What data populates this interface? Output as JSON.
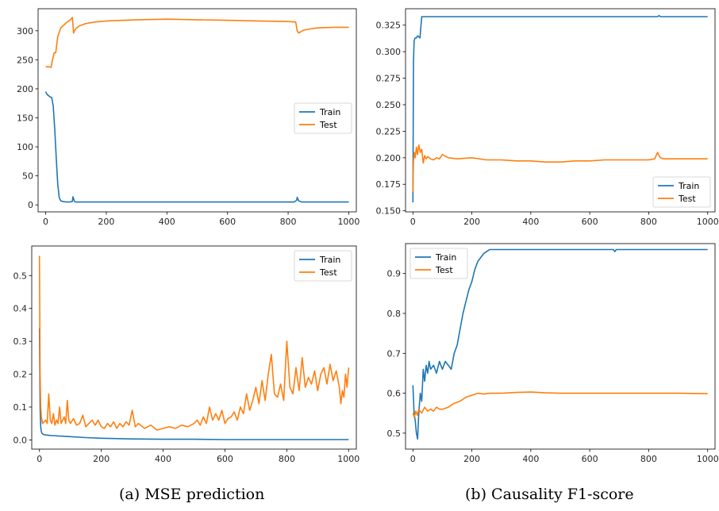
{
  "colors": {
    "train": "#1f77b4",
    "test": "#ff7f0e"
  },
  "captions": {
    "a": "(a) MSE prediction",
    "b": "(b) Causality F1-score"
  },
  "chart_data": [
    {
      "type": "line",
      "xlim": [
        -25,
        1025
      ],
      "ylim": [
        -12,
        338
      ],
      "xticks": [
        0,
        200,
        400,
        600,
        800,
        1000
      ],
      "yticks": [
        0,
        50,
        100,
        150,
        200,
        250,
        300
      ],
      "ytick_labels": [
        "0",
        "50",
        "100",
        "150",
        "200",
        "250",
        "300"
      ],
      "legend": "center-right",
      "series": [
        {
          "name": "Train",
          "color": "#1f77b4",
          "x": [
            0,
            5,
            10,
            15,
            20,
            25,
            30,
            35,
            40,
            45,
            50,
            55,
            60,
            70,
            80,
            88,
            90,
            92,
            95,
            100,
            150,
            200,
            300,
            400,
            500,
            600,
            700,
            800,
            820,
            828,
            830,
            835,
            845,
            900,
            1000
          ],
          "y": [
            195,
            190,
            188,
            186,
            185,
            170,
            130,
            80,
            35,
            12,
            7,
            6,
            5.5,
            5,
            5,
            6,
            14,
            11,
            6,
            5,
            5,
            5,
            5,
            5,
            5,
            5,
            5,
            5,
            5,
            8,
            13,
            7,
            5,
            5,
            5
          ]
        },
        {
          "name": "Test",
          "color": "#ff7f0e",
          "x": [
            0,
            10,
            18,
            22,
            28,
            33,
            40,
            50,
            60,
            70,
            80,
            88,
            92,
            95,
            100,
            110,
            130,
            160,
            200,
            300,
            400,
            500,
            600,
            700,
            800,
            825,
            830,
            835,
            850,
            880,
            900,
            950,
            1000
          ],
          "y": [
            238,
            238,
            237,
            248,
            262,
            262,
            290,
            305,
            310,
            315,
            318,
            323,
            296,
            300,
            304,
            308,
            312,
            315,
            317,
            319,
            320,
            319,
            318,
            317,
            316,
            315,
            300,
            296,
            301,
            304,
            305,
            306,
            306
          ]
        }
      ]
    },
    {
      "type": "line",
      "xlim": [
        -25,
        1025
      ],
      "ylim": [
        0.149,
        0.3405
      ],
      "xticks": [
        0,
        200,
        400,
        600,
        800,
        1000
      ],
      "yticks": [
        0.15,
        0.175,
        0.2,
        0.225,
        0.25,
        0.275,
        0.3,
        0.325
      ],
      "ytick_labels": [
        "0.150",
        "0.175",
        "0.200",
        "0.225",
        "0.250",
        "0.275",
        "0.300",
        "0.325"
      ],
      "legend": "bottom-right",
      "series": [
        {
          "name": "Train",
          "color": "#1f77b4",
          "x": [
            0,
            2,
            4,
            6,
            8,
            12,
            16,
            20,
            24,
            30,
            40,
            60,
            100,
            200,
            400,
            600,
            800,
            830,
            835,
            840,
            900,
            1000
          ],
          "y": [
            0.158,
            0.29,
            0.31,
            0.312,
            0.313,
            0.313,
            0.315,
            0.314,
            0.313,
            0.333,
            0.333,
            0.333,
            0.333,
            0.333,
            0.333,
            0.333,
            0.333,
            0.333,
            0.334,
            0.333,
            0.333,
            0.333
          ]
        },
        {
          "name": "Test",
          "color": "#ff7f0e",
          "x": [
            0,
            2,
            5,
            8,
            12,
            16,
            20,
            25,
            30,
            35,
            40,
            45,
            50,
            60,
            70,
            80,
            90,
            100,
            120,
            150,
            200,
            250,
            300,
            350,
            400,
            450,
            500,
            550,
            600,
            650,
            700,
            750,
            800,
            820,
            830,
            835,
            840,
            850,
            900,
            950,
            1000
          ],
          "y": [
            0.168,
            0.197,
            0.205,
            0.2,
            0.21,
            0.203,
            0.212,
            0.205,
            0.208,
            0.195,
            0.202,
            0.199,
            0.201,
            0.199,
            0.198,
            0.2,
            0.199,
            0.203,
            0.2,
            0.199,
            0.2,
            0.198,
            0.198,
            0.197,
            0.197,
            0.196,
            0.196,
            0.197,
            0.197,
            0.198,
            0.198,
            0.198,
            0.198,
            0.199,
            0.205,
            0.202,
            0.2,
            0.199,
            0.199,
            0.199,
            0.199
          ]
        }
      ]
    },
    {
      "type": "line",
      "xlim": [
        -25,
        1025
      ],
      "ylim": [
        -0.028,
        0.59
      ],
      "xticks": [
        0,
        200,
        400,
        600,
        800,
        1000
      ],
      "yticks": [
        0,
        0.1,
        0.2,
        0.3,
        0.4,
        0.5
      ],
      "ytick_labels": [
        "0.0",
        "0.1",
        "0.2",
        "0.3",
        "0.4",
        "0.5"
      ],
      "legend": "top-right",
      "series": [
        {
          "name": "Train",
          "color": "#1f77b4",
          "x": [
            0,
            2,
            4,
            6,
            8,
            10,
            15,
            20,
            30,
            40,
            50,
            60,
            80,
            100,
            150,
            200,
            300,
            400,
            500,
            600,
            700,
            800,
            900,
            1000
          ],
          "y": [
            0.34,
            0.1,
            0.04,
            0.025,
            0.02,
            0.018,
            0.016,
            0.015,
            0.014,
            0.013,
            0.013,
            0.012,
            0.011,
            0.01,
            0.007,
            0.005,
            0.003,
            0.002,
            0.002,
            0.001,
            0.001,
            0.001,
            0.001,
            0.001
          ]
        },
        {
          "name": "Test",
          "color": "#ff7f0e",
          "x": [
            0,
            2,
            4,
            6,
            10,
            15,
            20,
            25,
            30,
            35,
            40,
            45,
            50,
            55,
            60,
            65,
            70,
            75,
            80,
            85,
            90,
            95,
            100,
            110,
            120,
            130,
            140,
            150,
            160,
            170,
            180,
            190,
            200,
            210,
            220,
            230,
            240,
            250,
            260,
            270,
            280,
            290,
            300,
            310,
            320,
            340,
            360,
            380,
            400,
            420,
            440,
            460,
            480,
            500,
            510,
            520,
            530,
            540,
            550,
            560,
            570,
            580,
            590,
            600,
            610,
            620,
            630,
            640,
            650,
            660,
            670,
            680,
            690,
            700,
            710,
            720,
            730,
            740,
            750,
            760,
            770,
            780,
            790,
            800,
            810,
            820,
            830,
            840,
            850,
            860,
            870,
            880,
            890,
            900,
            910,
            920,
            930,
            940,
            950,
            960,
            970,
            975,
            980,
            985,
            990,
            995,
            1000
          ],
          "y": [
            0.56,
            0.2,
            0.1,
            0.07,
            0.05,
            0.055,
            0.06,
            0.05,
            0.14,
            0.06,
            0.05,
            0.08,
            0.045,
            0.06,
            0.05,
            0.1,
            0.05,
            0.06,
            0.07,
            0.05,
            0.12,
            0.06,
            0.05,
            0.065,
            0.045,
            0.05,
            0.075,
            0.04,
            0.05,
            0.06,
            0.045,
            0.06,
            0.04,
            0.035,
            0.05,
            0.04,
            0.055,
            0.035,
            0.05,
            0.04,
            0.055,
            0.045,
            0.09,
            0.04,
            0.05,
            0.035,
            0.045,
            0.03,
            0.035,
            0.04,
            0.035,
            0.045,
            0.04,
            0.05,
            0.06,
            0.045,
            0.07,
            0.05,
            0.1,
            0.06,
            0.08,
            0.06,
            0.09,
            0.05,
            0.065,
            0.07,
            0.085,
            0.06,
            0.1,
            0.08,
            0.14,
            0.09,
            0.12,
            0.16,
            0.11,
            0.18,
            0.12,
            0.2,
            0.26,
            0.14,
            0.13,
            0.17,
            0.12,
            0.3,
            0.16,
            0.14,
            0.22,
            0.15,
            0.25,
            0.16,
            0.19,
            0.17,
            0.21,
            0.15,
            0.2,
            0.22,
            0.17,
            0.23,
            0.18,
            0.21,
            0.16,
            0.11,
            0.15,
            0.13,
            0.2,
            0.16,
            0.22
          ]
        }
      ]
    },
    {
      "type": "line",
      "xlim": [
        -25,
        1025
      ],
      "ylim": [
        0.46,
        0.975
      ],
      "xticks": [
        0,
        200,
        400,
        600,
        800,
        1000
      ],
      "yticks": [
        0.5,
        0.6,
        0.7,
        0.8,
        0.9
      ],
      "ytick_labels": [
        "0.5",
        "0.6",
        "0.7",
        "0.8",
        "0.9"
      ],
      "legend": "top-left",
      "series": [
        {
          "name": "Train",
          "color": "#1f77b4",
          "x": [
            0,
            4,
            8,
            12,
            16,
            20,
            25,
            30,
            35,
            40,
            45,
            50,
            55,
            60,
            70,
            80,
            90,
            100,
            110,
            120,
            130,
            140,
            150,
            160,
            170,
            180,
            190,
            200,
            210,
            220,
            230,
            240,
            250,
            260,
            280,
            300,
            400,
            500,
            600,
            650,
            680,
            685,
            690,
            700,
            800,
            900,
            1000
          ],
          "y": [
            0.62,
            0.55,
            0.53,
            0.5,
            0.485,
            0.55,
            0.6,
            0.58,
            0.66,
            0.63,
            0.67,
            0.65,
            0.68,
            0.66,
            0.67,
            0.65,
            0.68,
            0.66,
            0.68,
            0.67,
            0.66,
            0.7,
            0.72,
            0.76,
            0.8,
            0.83,
            0.86,
            0.88,
            0.91,
            0.93,
            0.94,
            0.95,
            0.955,
            0.96,
            0.96,
            0.96,
            0.96,
            0.96,
            0.96,
            0.96,
            0.96,
            0.955,
            0.96,
            0.96,
            0.96,
            0.96,
            0.96
          ]
        },
        {
          "name": "Test",
          "color": "#ff7f0e",
          "x": [
            0,
            5,
            10,
            15,
            20,
            30,
            40,
            50,
            60,
            70,
            80,
            90,
            100,
            120,
            140,
            160,
            180,
            200,
            220,
            240,
            260,
            300,
            350,
            400,
            450,
            500,
            600,
            700,
            800,
            900,
            1000
          ],
          "y": [
            0.55,
            0.54,
            0.555,
            0.545,
            0.56,
            0.55,
            0.565,
            0.555,
            0.56,
            0.555,
            0.565,
            0.56,
            0.56,
            0.565,
            0.575,
            0.58,
            0.59,
            0.595,
            0.6,
            0.598,
            0.6,
            0.6,
            0.602,
            0.603,
            0.601,
            0.6,
            0.6,
            0.6,
            0.6,
            0.6,
            0.599
          ]
        }
      ]
    }
  ]
}
